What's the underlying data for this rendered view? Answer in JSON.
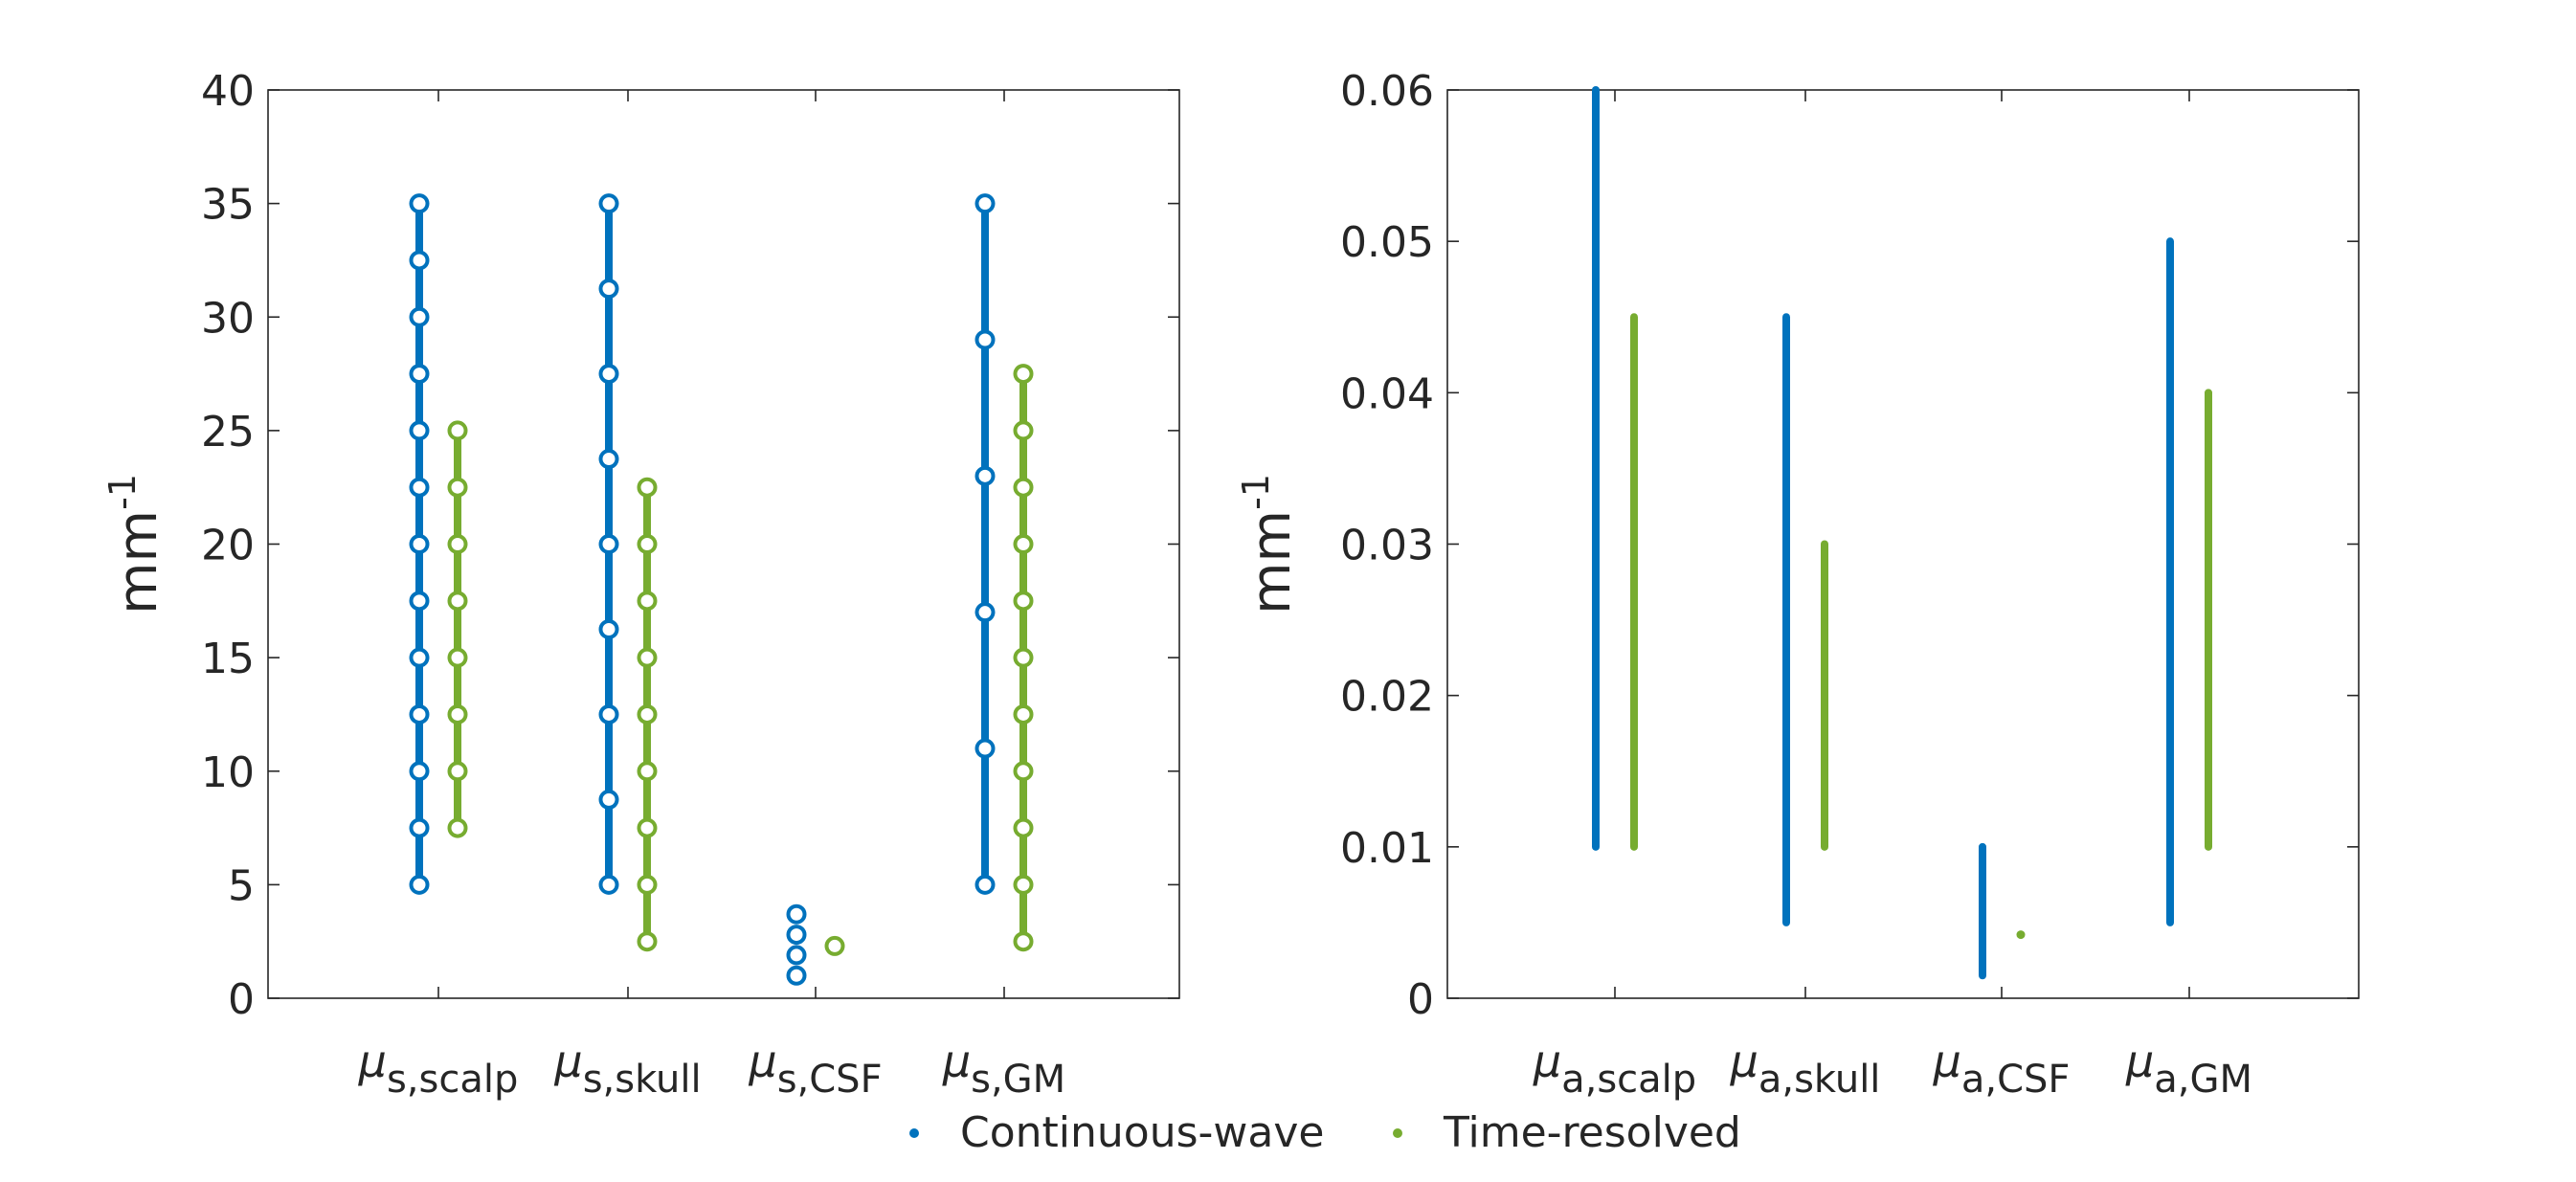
{
  "colors": {
    "cw": "#0072BD",
    "tr": "#77AC30",
    "axis": "#262626"
  },
  "legend": {
    "placement": "bottom",
    "items": [
      {
        "key": "cw",
        "label": "Continuous-wave"
      },
      {
        "key": "tr",
        "label": "Time-resolved"
      }
    ]
  },
  "chart_data": [
    {
      "type": "scatter",
      "ylabel_base": "mm",
      "ylabel_sup": "-1",
      "ylim": [
        0,
        40
      ],
      "yticks": [
        0,
        5,
        10,
        15,
        20,
        25,
        30,
        35,
        40
      ],
      "ytick_labels": [
        "0",
        "5",
        "10",
        "15",
        "20",
        "25",
        "30",
        "35",
        "40"
      ],
      "categories": [
        {
          "sym": "μ",
          "sub": "s,scalp"
        },
        {
          "sym": "μ",
          "sub": "s,skull"
        },
        {
          "sym": "μ",
          "sub": "s,CSF"
        },
        {
          "sym": "μ",
          "sub": "s,GM"
        }
      ],
      "series": [
        {
          "name": "Continuous-wave",
          "key": "cw",
          "ranges": [
            [
              5,
              35
            ],
            [
              5,
              35
            ],
            null,
            [
              5,
              35
            ]
          ],
          "markers": [
            [
              5,
              7.5,
              10,
              12.5,
              15,
              17.5,
              20,
              22.5,
              25,
              27.5,
              30,
              32.5,
              35
            ],
            [
              5,
              8.75,
              12.5,
              16.25,
              20,
              23.75,
              27.5,
              31.25,
              35
            ],
            [
              1,
              1.9,
              2.8,
              3.7
            ],
            [
              5,
              11,
              17,
              23,
              29,
              35
            ]
          ]
        },
        {
          "name": "Time-resolved",
          "key": "tr",
          "ranges": [
            [
              7.5,
              25
            ],
            [
              2.5,
              22.5
            ],
            null,
            [
              2.5,
              27.5
            ]
          ],
          "markers": [
            [
              7.5,
              10,
              12.5,
              15,
              17.5,
              20,
              22.5,
              25
            ],
            [
              2.5,
              5,
              7.5,
              10,
              12.5,
              15,
              17.5,
              20,
              22.5
            ],
            [
              2.3
            ],
            [
              2.5,
              5,
              7.5,
              10,
              12.5,
              15,
              17.5,
              20,
              22.5,
              25,
              27.5
            ]
          ]
        }
      ]
    },
    {
      "type": "scatter",
      "ylabel_base": "mm",
      "ylabel_sup": "-1",
      "ylim": [
        0,
        0.06
      ],
      "yticks": [
        0,
        0.01,
        0.02,
        0.03,
        0.04,
        0.05,
        0.06
      ],
      "ytick_labels": [
        "0",
        "0.01",
        "0.02",
        "0.03",
        "0.04",
        "0.05",
        "0.06"
      ],
      "categories": [
        {
          "sym": "μ",
          "sub": "a,scalp"
        },
        {
          "sym": "μ",
          "sub": "a,skull"
        },
        {
          "sym": "μ",
          "sub": "a,CSF"
        },
        {
          "sym": "μ",
          "sub": "a,GM"
        }
      ],
      "series": [
        {
          "name": "Continuous-wave",
          "key": "cw",
          "ranges": [
            [
              0.01,
              0.06
            ],
            [
              0.005,
              0.045
            ],
            [
              0.0015,
              0.01
            ],
            [
              0.005,
              0.05
            ]
          ],
          "markers": [
            [],
            [],
            [],
            []
          ]
        },
        {
          "name": "Time-resolved",
          "key": "tr",
          "ranges": [
            [
              0.01,
              0.045
            ],
            [
              0.01,
              0.03
            ],
            [
              0.0042,
              0.0042
            ],
            [
              0.01,
              0.04
            ]
          ],
          "markers": [
            [],
            [],
            [],
            []
          ]
        }
      ]
    }
  ]
}
